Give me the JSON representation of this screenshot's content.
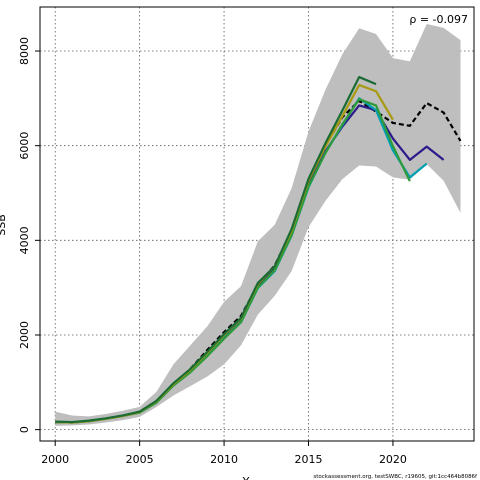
{
  "chart_data": {
    "type": "line",
    "title": "",
    "xlabel": "Y",
    "ylabel": "SSB",
    "xlim": [
      1999.1,
      2024.8
    ],
    "ylim": [
      -240,
      8930
    ],
    "x_ticks": [
      2000,
      2005,
      2010,
      2015,
      2020
    ],
    "y_ticks": [
      0,
      2000,
      4000,
      6000,
      8000
    ],
    "grid": true,
    "grid_style": "dotted",
    "annotation": "ρ = -0.097",
    "footer": "stockassessment.org, testSWBC, r19605, git:1cc464b8086f",
    "band": {
      "name": "confidence-band",
      "color": "#bebebe",
      "x": [
        2000,
        2001,
        2002,
        2003,
        2004,
        2005,
        2006,
        2007,
        2008,
        2009,
        2010,
        2011,
        2012,
        2013,
        2014,
        2015,
        2016,
        2017,
        2018,
        2019,
        2020,
        2021,
        2022,
        2023,
        2024
      ],
      "lower": [
        80,
        90,
        110,
        150,
        200,
        270,
        480,
        720,
        920,
        1120,
        1380,
        1780,
        2430,
        2830,
        3350,
        4280,
        4830,
        5290,
        5580,
        5560,
        5330,
        5280,
        5610,
        5260,
        4580
      ],
      "upper": [
        380,
        300,
        280,
        330,
        400,
        480,
        800,
        1380,
        1780,
        2180,
        2700,
        3030,
        3980,
        4330,
        5100,
        6300,
        7180,
        7930,
        8480,
        8360,
        7850,
        7780,
        8570,
        8490,
        8230
      ]
    },
    "series": [
      {
        "name": "",
        "color": "#000000",
        "dash": "5,3",
        "width": 2.2,
        "x": [
          2000,
          2001,
          2002,
          2003,
          2004,
          2005,
          2006,
          2007,
          2008,
          2009,
          2010,
          2011,
          2012,
          2013,
          2014,
          2015,
          2016,
          2017,
          2018,
          2019,
          2020,
          2021,
          2022,
          2023,
          2024
        ],
        "values": [
          160,
          150,
          180,
          230,
          290,
          380,
          600,
          960,
          1280,
          1680,
          2060,
          2400,
          3060,
          3470,
          4200,
          5280,
          6000,
          6600,
          6950,
          6720,
          6480,
          6420,
          6900,
          6700,
          6100
        ]
      },
      {
        "name": "",
        "color": "#2b1a8a",
        "dash": "",
        "width": 2.2,
        "x": [
          2000,
          2001,
          2002,
          2003,
          2004,
          2005,
          2006,
          2007,
          2008,
          2009,
          2010,
          2011,
          2012,
          2013,
          2014,
          2015,
          2016,
          2017,
          2018,
          2019,
          2020,
          2021,
          2022,
          2023
        ],
        "values": [
          160,
          150,
          180,
          230,
          290,
          370,
          590,
          960,
          1260,
          1620,
          1990,
          2340,
          3050,
          3420,
          4170,
          5180,
          5880,
          6400,
          6850,
          6750,
          6150,
          5700,
          5980,
          5700
        ]
      },
      {
        "name": "",
        "color": "#00a0b0",
        "dash": "",
        "width": 2.2,
        "x": [
          2000,
          2001,
          2002,
          2003,
          2004,
          2005,
          2006,
          2007,
          2008,
          2009,
          2010,
          2011,
          2012,
          2013,
          2014,
          2015,
          2016,
          2017,
          2018,
          2019,
          2020,
          2021,
          2022
        ],
        "values": [
          160,
          150,
          180,
          230,
          290,
          360,
          580,
          940,
          1220,
          1560,
          1930,
          2270,
          2990,
          3350,
          4100,
          5120,
          5850,
          6430,
          7000,
          6750,
          5900,
          5330,
          5620
        ]
      },
      {
        "name": "",
        "color": "#2e9a3a",
        "dash": "",
        "width": 2.2,
        "x": [
          2000,
          2001,
          2002,
          2003,
          2004,
          2005,
          2006,
          2007,
          2008,
          2009,
          2010,
          2011,
          2012,
          2013,
          2014,
          2015,
          2016,
          2017,
          2018,
          2019,
          2020,
          2021
        ],
        "values": [
          160,
          150,
          180,
          230,
          290,
          360,
          570,
          930,
          1210,
          1550,
          1920,
          2270,
          3000,
          3370,
          4110,
          5140,
          5840,
          6450,
          6980,
          6850,
          5990,
          5250
        ]
      },
      {
        "name": "",
        "color": "#a89a10",
        "dash": "",
        "width": 2.2,
        "x": [
          2000,
          2001,
          2002,
          2003,
          2004,
          2005,
          2006,
          2007,
          2008,
          2009,
          2010,
          2011,
          2012,
          2013,
          2014,
          2015,
          2016,
          2017,
          2018,
          2019,
          2020
        ],
        "values": [
          160,
          150,
          180,
          230,
          290,
          370,
          600,
          960,
          1260,
          1620,
          2000,
          2350,
          3080,
          3450,
          4200,
          5260,
          5980,
          6620,
          7280,
          7150,
          6550
        ]
      },
      {
        "name": "",
        "color": "#1a6b34",
        "dash": "",
        "width": 2.2,
        "x": [
          2000,
          2001,
          2002,
          2003,
          2004,
          2005,
          2006,
          2007,
          2008,
          2009,
          2010,
          2011,
          2012,
          2013,
          2014,
          2015,
          2016,
          2017,
          2018,
          2019
        ],
        "values": [
          170,
          160,
          190,
          240,
          300,
          380,
          610,
          980,
          1280,
          1640,
          2020,
          2360,
          3100,
          3450,
          4240,
          5300,
          6050,
          6740,
          7450,
          7300
        ]
      }
    ]
  }
}
